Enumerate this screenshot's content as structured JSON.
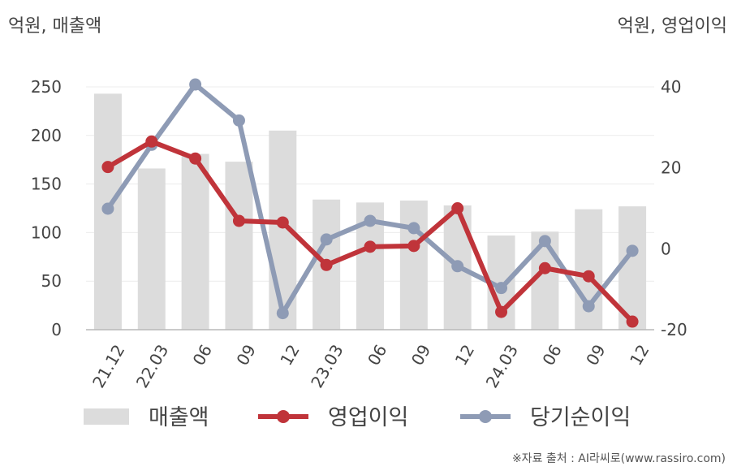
{
  "chart_data": {
    "type": "bar",
    "left_axis_unit": "억원, 매출액",
    "right_axis_unit": "억원, 영업이익",
    "categories": [
      "21.12",
      "22.03",
      "06",
      "09",
      "12",
      "23.03",
      "06",
      "09",
      "12",
      "24.03",
      "06",
      "09",
      "12"
    ],
    "left_ylim": [
      0,
      250
    ],
    "left_yticks": [
      0,
      50,
      100,
      150,
      200,
      250
    ],
    "right_ylim": [
      -20,
      40
    ],
    "right_yticks": [
      -20,
      0,
      20,
      40
    ],
    "grid": true,
    "legend_position": "bottom",
    "series": [
      {
        "name": "매출액",
        "type": "bar",
        "axis": "left",
        "color": "#dcdcdc",
        "values": [
          243,
          166,
          181,
          173,
          205,
          134,
          131,
          133,
          128,
          97,
          101,
          124,
          127
        ]
      },
      {
        "name": "영업이익",
        "type": "line",
        "axis": "right",
        "color": "#c0343a",
        "values": [
          20.2,
          26.5,
          22.3,
          6.9,
          6.5,
          -4.0,
          0.5,
          0.7,
          10.0,
          -15.6,
          -4.8,
          -6.8,
          -18.0
        ]
      },
      {
        "name": "당기순이익",
        "type": "line",
        "axis": "right",
        "color": "#8e9bb5",
        "values": [
          9.9,
          25.7,
          40.6,
          31.7,
          -15.9,
          2.3,
          6.9,
          5.1,
          -4.3,
          -9.7,
          1.9,
          -14.2,
          -0.5
        ]
      }
    ]
  },
  "source_note": "※자료 출처 : AI라씨로(www.rassiro.com)"
}
